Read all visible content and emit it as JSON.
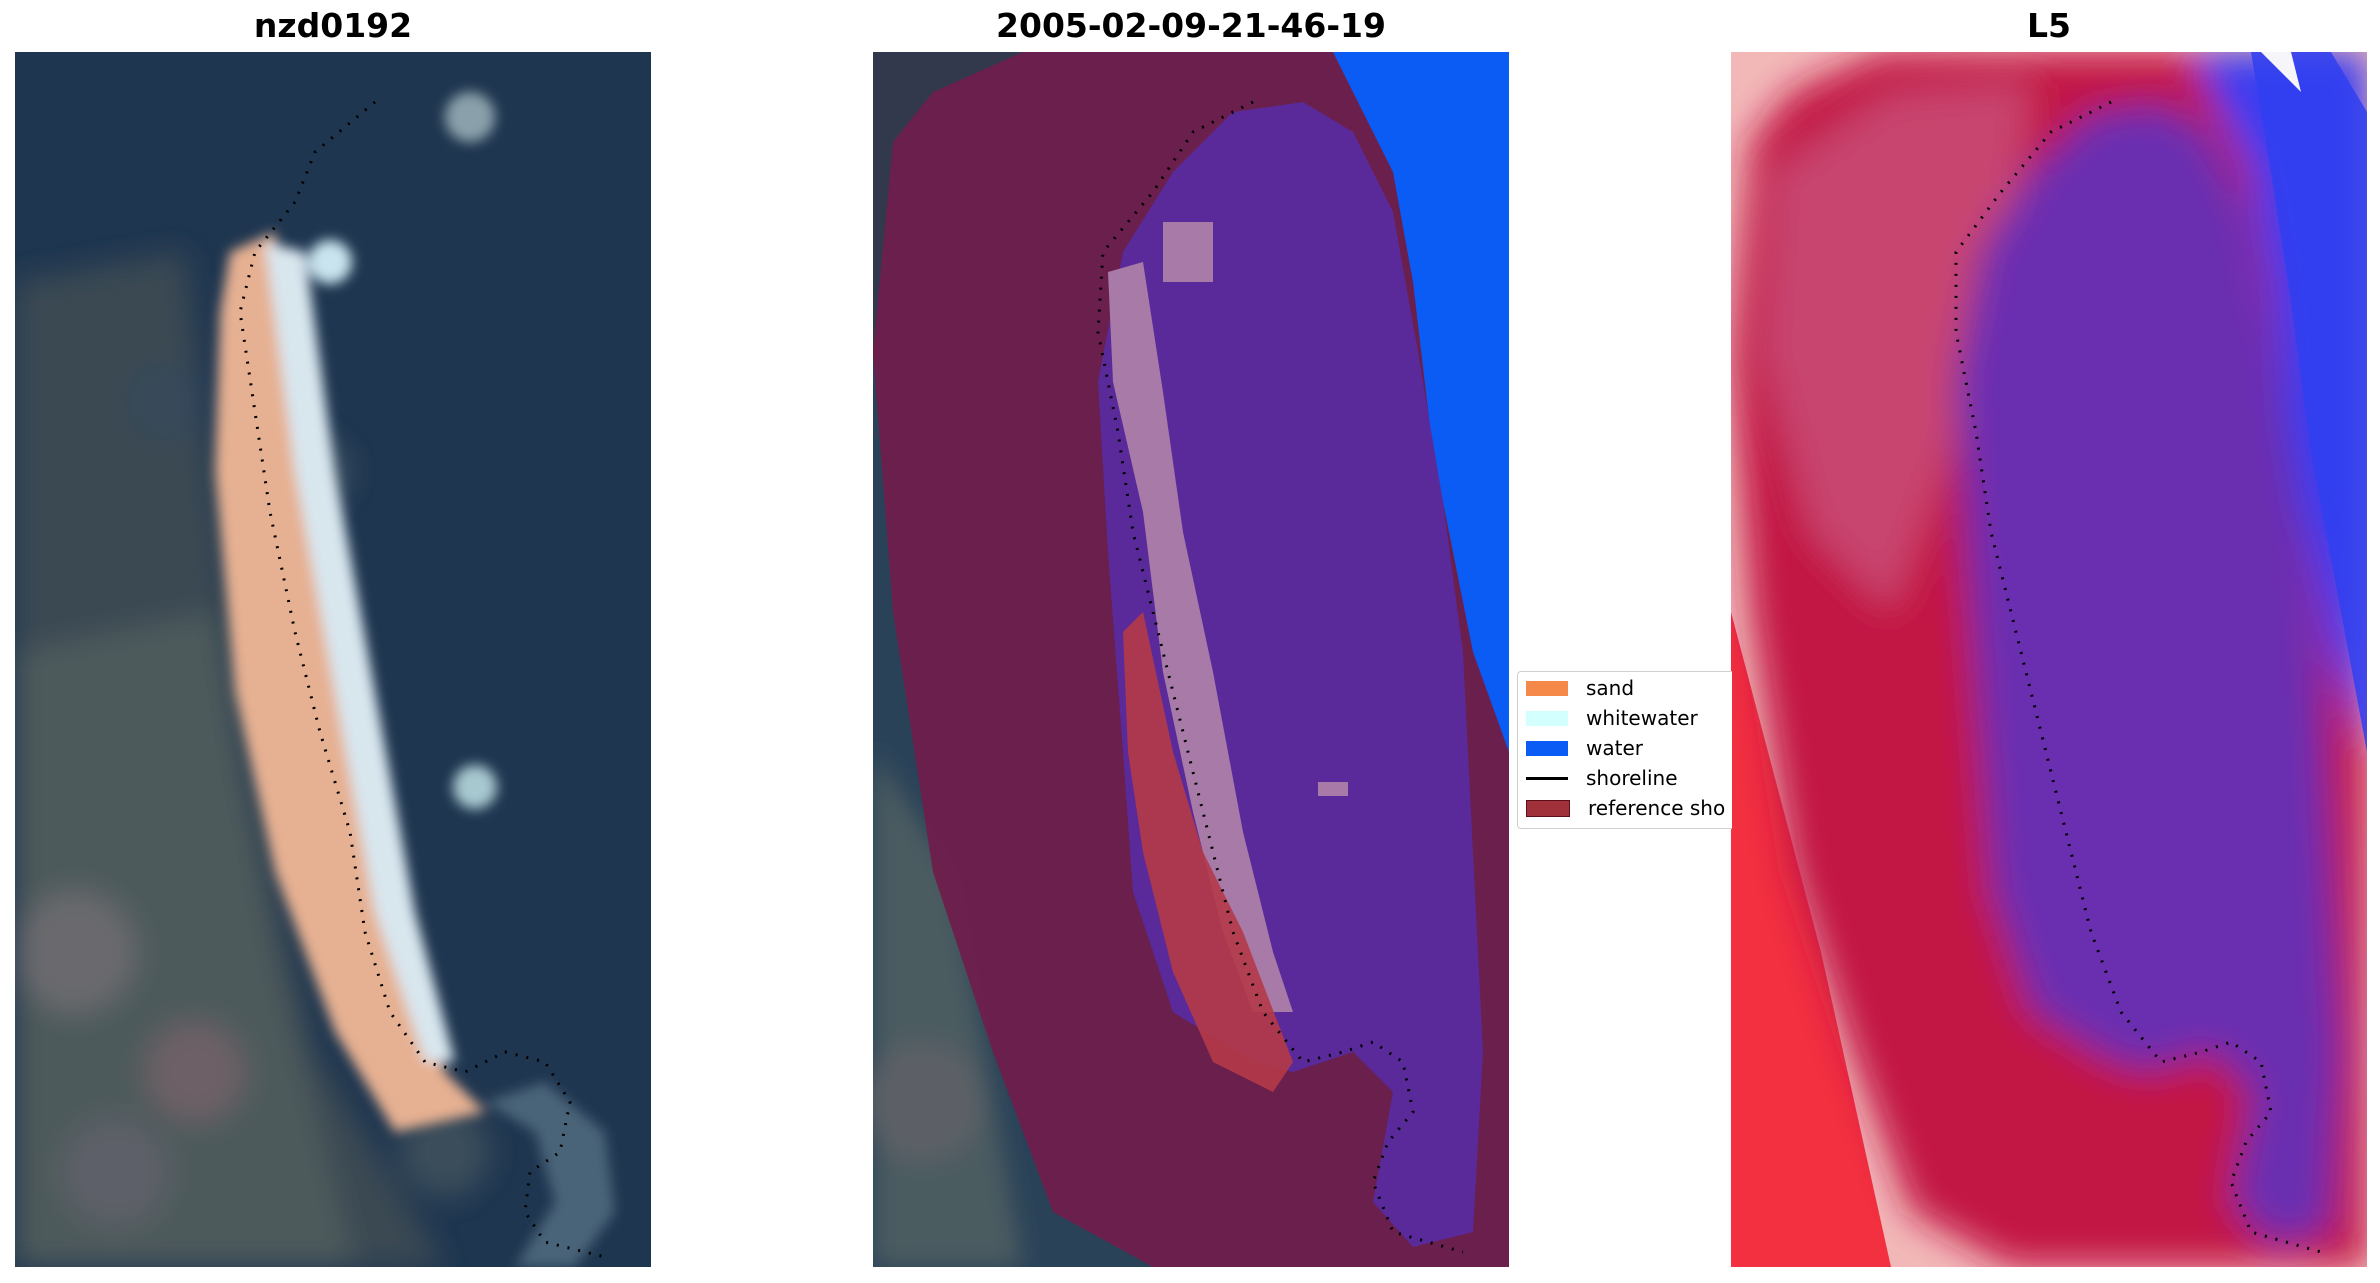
{
  "panels": [
    {
      "title": "nzd0192",
      "kind": "rgb-image"
    },
    {
      "title": "2005-02-09-21-46-19",
      "kind": "classified-image"
    },
    {
      "title": "L5",
      "kind": "index-image"
    }
  ],
  "legend": {
    "items": [
      {
        "label": "sand",
        "color": "#f4894a",
        "type": "patch"
      },
      {
        "label": "whitewater",
        "color": "#d4ffff",
        "type": "patch"
      },
      {
        "label": "water",
        "color": "#0a5cf5",
        "type": "patch"
      },
      {
        "label": "shoreline",
        "color": "#000000",
        "type": "line"
      },
      {
        "label": "reference sho",
        "color": "#a0303a",
        "type": "patch"
      }
    ]
  },
  "colors": {
    "ocean": "#1f3650",
    "sand": "#e8b08e",
    "buffer": "#701c4c",
    "water_class": "#0a5cf5",
    "whitewater_class": "#a77aa8",
    "index_water": "#6a2db0",
    "index_land": "#c21245"
  }
}
